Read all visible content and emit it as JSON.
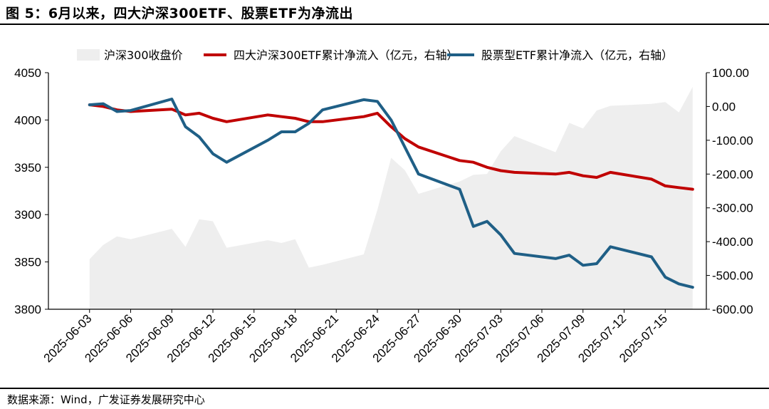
{
  "figure": {
    "title": "图 5：6月以来，四大沪深300ETF、股票ETF为净流出",
    "source": "数据来源：Wind，广发证券发展研究中心"
  },
  "chart_data": {
    "type": "line",
    "legend_position": "top",
    "x_tick_labels": [
      "2025-06-03",
      "2025-06-06",
      "2025-06-09",
      "2025-06-12",
      "2025-06-15",
      "2025-06-18",
      "2025-06-21",
      "2025-06-24",
      "2025-06-27",
      "2025-06-30",
      "2025-07-03",
      "2025-07-06",
      "2025-07-09",
      "2025-07-12",
      "2025-07-15"
    ],
    "y_left": {
      "min": 3800,
      "max": 4050,
      "ticks": [
        3800,
        3850,
        3900,
        3950,
        4000,
        4050
      ]
    },
    "y_right": {
      "min": -600,
      "max": 100,
      "ticks": [
        "100.00",
        "0.00",
        "-100.00",
        "-200.00",
        "-300.00",
        "-400.00",
        "-500.00",
        "-600.00"
      ]
    },
    "series": [
      {
        "name": "沪深300收盘价",
        "kind": "area",
        "axis": "left",
        "color": "#eeeeee",
        "points": [
          [
            "2025-06-03",
            3853
          ],
          [
            "2025-06-04",
            3868
          ],
          [
            "2025-06-05",
            3877
          ],
          [
            "2025-06-06",
            3874
          ],
          [
            "2025-06-09",
            3885
          ],
          [
            "2025-06-10",
            3866
          ],
          [
            "2025-06-11",
            3895
          ],
          [
            "2025-06-12",
            3893
          ],
          [
            "2025-06-13",
            3865
          ],
          [
            "2025-06-16",
            3873
          ],
          [
            "2025-06-17",
            3870
          ],
          [
            "2025-06-18",
            3874
          ],
          [
            "2025-06-19",
            3844
          ],
          [
            "2025-06-20",
            3847
          ],
          [
            "2025-06-23",
            3858
          ],
          [
            "2025-06-24",
            3905
          ],
          [
            "2025-06-25",
            3960
          ],
          [
            "2025-06-26",
            3947
          ],
          [
            "2025-06-27",
            3922
          ],
          [
            "2025-06-30",
            3935
          ],
          [
            "2025-07-01",
            3942
          ],
          [
            "2025-07-02",
            3943
          ],
          [
            "2025-07-03",
            3967
          ],
          [
            "2025-07-04",
            3983
          ],
          [
            "2025-07-07",
            3966
          ],
          [
            "2025-07-08",
            3997
          ],
          [
            "2025-07-09",
            3991
          ],
          [
            "2025-07-10",
            4010
          ],
          [
            "2025-07-11",
            4015
          ],
          [
            "2025-07-14",
            4017
          ],
          [
            "2025-07-15",
            4019
          ],
          [
            "2025-07-16",
            4008
          ],
          [
            "2025-07-17",
            4035
          ]
        ]
      },
      {
        "name": "四大沪深300ETF累计净流入（亿元，右轴）",
        "kind": "line",
        "axis": "right",
        "color": "#c00000",
        "points": [
          [
            "2025-06-03",
            5
          ],
          [
            "2025-06-04",
            0
          ],
          [
            "2025-06-05",
            -10
          ],
          [
            "2025-06-06",
            -15
          ],
          [
            "2025-06-09",
            -8
          ],
          [
            "2025-06-10",
            -25
          ],
          [
            "2025-06-11",
            -20
          ],
          [
            "2025-06-12",
            -35
          ],
          [
            "2025-06-13",
            -45
          ],
          [
            "2025-06-16",
            -25
          ],
          [
            "2025-06-17",
            -30
          ],
          [
            "2025-06-18",
            -35
          ],
          [
            "2025-06-19",
            -45
          ],
          [
            "2025-06-20",
            -45
          ],
          [
            "2025-06-23",
            -30
          ],
          [
            "2025-06-24",
            -20
          ],
          [
            "2025-06-25",
            -60
          ],
          [
            "2025-06-26",
            -95
          ],
          [
            "2025-06-27",
            -120
          ],
          [
            "2025-06-30",
            -160
          ],
          [
            "2025-07-01",
            -165
          ],
          [
            "2025-07-02",
            -180
          ],
          [
            "2025-07-03",
            -190
          ],
          [
            "2025-07-04",
            -195
          ],
          [
            "2025-07-07",
            -200
          ],
          [
            "2025-07-08",
            -195
          ],
          [
            "2025-07-09",
            -205
          ],
          [
            "2025-07-10",
            -210
          ],
          [
            "2025-07-11",
            -195
          ],
          [
            "2025-07-14",
            -215
          ],
          [
            "2025-07-15",
            -235
          ],
          [
            "2025-07-16",
            -240
          ],
          [
            "2025-07-17",
            -245
          ]
        ]
      },
      {
        "name": "股票型ETF累计净流入（亿元，右轴）",
        "kind": "line",
        "axis": "right",
        "color": "#1f5f86",
        "points": [
          [
            "2025-06-03",
            5
          ],
          [
            "2025-06-04",
            8
          ],
          [
            "2025-06-05",
            -15
          ],
          [
            "2025-06-06",
            -12
          ],
          [
            "2025-06-09",
            22
          ],
          [
            "2025-06-10",
            -60
          ],
          [
            "2025-06-11",
            -90
          ],
          [
            "2025-06-12",
            -140
          ],
          [
            "2025-06-13",
            -165
          ],
          [
            "2025-06-16",
            -100
          ],
          [
            "2025-06-17",
            -75
          ],
          [
            "2025-06-18",
            -75
          ],
          [
            "2025-06-19",
            -50
          ],
          [
            "2025-06-20",
            -10
          ],
          [
            "2025-06-23",
            20
          ],
          [
            "2025-06-24",
            15
          ],
          [
            "2025-06-25",
            -40
          ],
          [
            "2025-06-26",
            -120
          ],
          [
            "2025-06-27",
            -200
          ],
          [
            "2025-06-30",
            -245
          ],
          [
            "2025-07-01",
            -355
          ],
          [
            "2025-07-02",
            -340
          ],
          [
            "2025-07-03",
            -380
          ],
          [
            "2025-07-04",
            -435
          ],
          [
            "2025-07-07",
            -450
          ],
          [
            "2025-07-08",
            -440
          ],
          [
            "2025-07-09",
            -470
          ],
          [
            "2025-07-10",
            -465
          ],
          [
            "2025-07-11",
            -415
          ],
          [
            "2025-07-14",
            -445
          ],
          [
            "2025-07-15",
            -505
          ],
          [
            "2025-07-16",
            -525
          ],
          [
            "2025-07-17",
            -535
          ]
        ]
      }
    ]
  }
}
